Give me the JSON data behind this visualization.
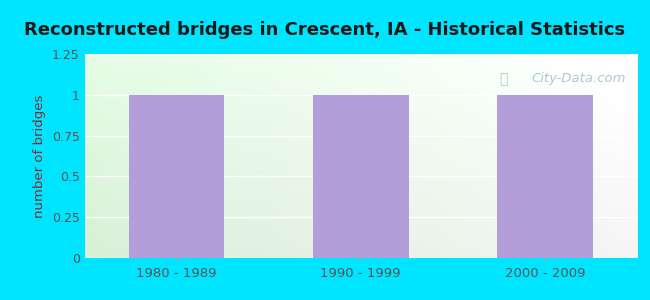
{
  "title": "Reconstructed bridges in Crescent, IA - Historical Statistics",
  "categories": [
    "1980 - 1989",
    "1990 - 1999",
    "2000 - 2009"
  ],
  "values": [
    1,
    1,
    1
  ],
  "bar_color": "#b39ddb",
  "ylabel": "number of bridges",
  "ylim": [
    0,
    1.25
  ],
  "yticks": [
    0,
    0.25,
    0.5,
    0.75,
    1,
    1.25
  ],
  "background_outer": "#00e5ff",
  "grid_color": "#ffffff",
  "title_fontsize": 13,
  "axis_label_color": "#7a3030",
  "tick_label_color": "#555555",
  "watermark": "City-Data.com",
  "bg_gradient_left": "#d8f0d8",
  "bg_gradient_right": "#f5f5f5"
}
